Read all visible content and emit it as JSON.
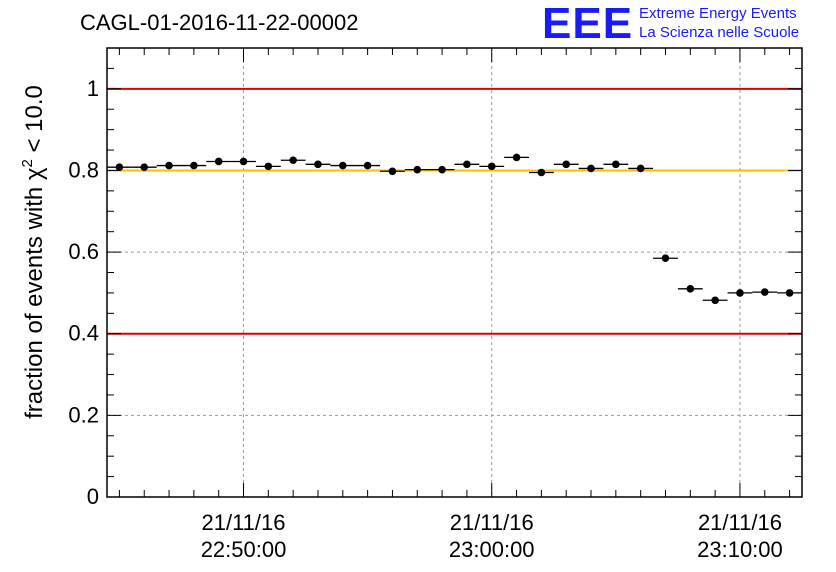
{
  "header": {
    "title": "CAGL-01-2016-11-22-00002",
    "logo": {
      "mark": "EEE",
      "line1": "Extreme Energy Events",
      "line2": "La Scienza nelle Scuole",
      "color": "#1a1aff"
    }
  },
  "chart_data": {
    "type": "scatter",
    "ylabel_prefix": "fraction of events with χ",
    "ylabel_sup": "2",
    "ylabel_suffix": " < 10.0",
    "xlabel": "",
    "ylim": [
      0,
      1.1
    ],
    "xlim": [
      "22:44:30",
      "23:12:30"
    ],
    "y_ticks": [
      "0",
      "0.2",
      "0.4",
      "0.6",
      "0.8",
      "1"
    ],
    "x_ticks": [
      {
        "time": "22:50:00",
        "date": "21/11/16",
        "label": "22:50:00"
      },
      {
        "time": "23:00:00",
        "date": "21/11/16",
        "label": "23:00:00"
      },
      {
        "time": "23:10:00",
        "date": "21/11/16",
        "label": "23:10:00"
      }
    ],
    "grid": true,
    "reference_lines": [
      {
        "y": 1.0,
        "color": "#e00000"
      },
      {
        "y": 0.8,
        "color": "#ffc000"
      },
      {
        "y": 0.4,
        "color": "#e00000"
      }
    ],
    "series": [
      {
        "marker_color": "#000000",
        "bin_width_minutes": 1,
        "points": [
          {
            "x": "22:45:00",
            "y": 0.808
          },
          {
            "x": "22:46:00",
            "y": 0.808
          },
          {
            "x": "22:47:00",
            "y": 0.812
          },
          {
            "x": "22:48:00",
            "y": 0.812
          },
          {
            "x": "22:49:00",
            "y": 0.822
          },
          {
            "x": "22:50:00",
            "y": 0.822
          },
          {
            "x": "22:51:00",
            "y": 0.81
          },
          {
            "x": "22:52:00",
            "y": 0.825
          },
          {
            "x": "22:53:00",
            "y": 0.815
          },
          {
            "x": "22:54:00",
            "y": 0.812
          },
          {
            "x": "22:55:00",
            "y": 0.812
          },
          {
            "x": "22:56:00",
            "y": 0.798
          },
          {
            "x": "22:57:00",
            "y": 0.802
          },
          {
            "x": "22:58:00",
            "y": 0.802
          },
          {
            "x": "22:59:00",
            "y": 0.815
          },
          {
            "x": "23:00:00",
            "y": 0.81
          },
          {
            "x": "23:01:00",
            "y": 0.832
          },
          {
            "x": "23:02:00",
            "y": 0.795
          },
          {
            "x": "23:03:00",
            "y": 0.815
          },
          {
            "x": "23:04:00",
            "y": 0.805
          },
          {
            "x": "23:05:00",
            "y": 0.815
          },
          {
            "x": "23:06:00",
            "y": 0.805
          },
          {
            "x": "23:07:00",
            "y": 0.585
          },
          {
            "x": "23:08:00",
            "y": 0.51
          },
          {
            "x": "23:09:00",
            "y": 0.482
          },
          {
            "x": "23:10:00",
            "y": 0.5
          },
          {
            "x": "23:11:00",
            "y": 0.502
          },
          {
            "x": "23:12:00",
            "y": 0.5
          }
        ]
      }
    ]
  }
}
